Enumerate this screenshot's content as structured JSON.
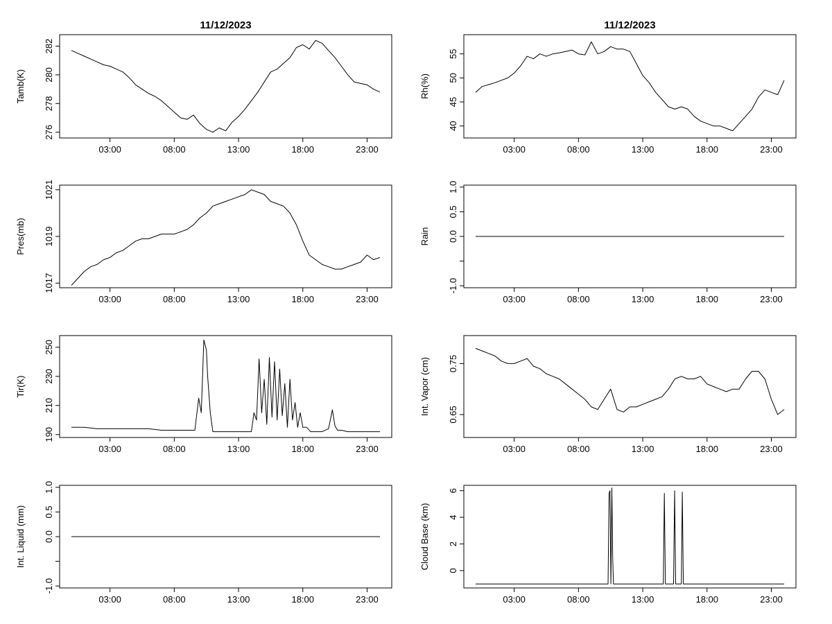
{
  "colors": {
    "line": "#000000",
    "background": "#ffffff"
  },
  "x_tick_labels": [
    "03:00",
    "08:00",
    "13:00",
    "18:00",
    "23:00"
  ],
  "chart_data": [
    {
      "type": "line",
      "title": "11/12/2023",
      "ylabel": "Tamb(K)",
      "xlim": [
        0,
        24
      ],
      "ylim": [
        275.6,
        282.8
      ],
      "x_ticks": [
        3,
        8,
        13,
        18,
        23
      ],
      "y_ticks": [
        276,
        278,
        280,
        282
      ],
      "y_tick_labels": [
        "276",
        "278",
        "280",
        "282"
      ],
      "x": [
        0,
        0.5,
        1,
        1.5,
        2,
        2.5,
        3,
        3.5,
        4,
        4.5,
        5,
        5.5,
        6,
        6.5,
        7,
        7.5,
        8,
        8.5,
        9,
        9.5,
        10,
        10.5,
        11,
        11.5,
        12,
        12.5,
        13,
        13.5,
        14,
        14.5,
        15,
        15.5,
        16,
        16.5,
        17,
        17.5,
        18,
        18.5,
        19,
        19.5,
        20,
        20.5,
        21,
        21.5,
        22,
        22.5,
        23,
        23.5,
        24
      ],
      "y": [
        281.7,
        281.5,
        281.3,
        281.1,
        280.9,
        280.7,
        280.6,
        280.4,
        280.2,
        279.8,
        279.3,
        279.0,
        278.7,
        278.5,
        278.2,
        277.8,
        277.4,
        277.0,
        276.9,
        277.2,
        276.6,
        276.2,
        276.0,
        276.3,
        276.1,
        276.7,
        277.1,
        277.6,
        278.2,
        278.8,
        279.5,
        280.2,
        280.4,
        280.8,
        281.2,
        281.9,
        282.1,
        281.8,
        282.4,
        282.2,
        281.7,
        281.2,
        280.6,
        280.0,
        279.5,
        279.4,
        279.3,
        279.0,
        278.8
      ]
    },
    {
      "type": "line",
      "title": "11/12/2023",
      "ylabel": "Rh(%)",
      "xlim": [
        0,
        24
      ],
      "ylim": [
        37.5,
        59
      ],
      "x_ticks": [
        3,
        8,
        13,
        18,
        23
      ],
      "y_ticks": [
        40,
        45,
        50,
        55
      ],
      "y_tick_labels": [
        "40",
        "45",
        "50",
        "55"
      ],
      "x": [
        0,
        0.5,
        1,
        1.5,
        2,
        2.5,
        3,
        3.5,
        4,
        4.5,
        5,
        5.5,
        6,
        6.5,
        7,
        7.5,
        8,
        8.5,
        9,
        9.5,
        10,
        10.5,
        11,
        11.5,
        12,
        12.5,
        13,
        13.5,
        14,
        14.5,
        15,
        15.5,
        16,
        16.5,
        17,
        17.5,
        18,
        18.5,
        19,
        19.5,
        20,
        20.5,
        21,
        21.5,
        22,
        22.5,
        23,
        23.5,
        24
      ],
      "y": [
        47.0,
        48.2,
        48.6,
        49.0,
        49.5,
        50.0,
        51.0,
        52.5,
        54.5,
        54.0,
        55.0,
        54.5,
        55.0,
        55.2,
        55.5,
        55.8,
        55.0,
        54.8,
        57.5,
        55.0,
        55.5,
        56.5,
        56.0,
        56.0,
        55.5,
        53.0,
        50.5,
        49.0,
        47.0,
        45.5,
        44.0,
        43.5,
        44.0,
        43.5,
        42.0,
        41.0,
        40.5,
        40.0,
        40.0,
        39.5,
        39.0,
        40.5,
        42.0,
        43.5,
        46.0,
        47.5,
        47.0,
        46.5,
        49.5
      ]
    },
    {
      "type": "line",
      "ylabel": "Pres(mb)",
      "xlim": [
        0,
        24
      ],
      "ylim": [
        1016.8,
        1021.2
      ],
      "x_ticks": [
        3,
        8,
        13,
        18,
        23
      ],
      "y_ticks": [
        1017,
        1019,
        1021
      ],
      "y_tick_labels": [
        "1017",
        "1019",
        "1021"
      ],
      "x": [
        0,
        0.5,
        1,
        1.5,
        2,
        2.5,
        3,
        3.5,
        4,
        4.5,
        5,
        5.5,
        6,
        6.5,
        7,
        7.5,
        8,
        8.5,
        9,
        9.5,
        10,
        10.5,
        11,
        11.5,
        12,
        12.5,
        13,
        13.5,
        14,
        14.5,
        15,
        15.5,
        16,
        16.5,
        17,
        17.5,
        18,
        18.5,
        19,
        19.5,
        20,
        20.5,
        21,
        21.5,
        22,
        22.5,
        23,
        23.5,
        24
      ],
      "y": [
        1016.9,
        1017.2,
        1017.5,
        1017.7,
        1017.8,
        1018.0,
        1018.1,
        1018.3,
        1018.4,
        1018.6,
        1018.8,
        1018.9,
        1018.9,
        1019.0,
        1019.1,
        1019.1,
        1019.1,
        1019.2,
        1019.3,
        1019.5,
        1019.8,
        1020.0,
        1020.3,
        1020.4,
        1020.5,
        1020.6,
        1020.7,
        1020.8,
        1021.0,
        1020.9,
        1020.8,
        1020.5,
        1020.4,
        1020.3,
        1020.0,
        1019.5,
        1018.8,
        1018.2,
        1018.0,
        1017.8,
        1017.7,
        1017.6,
        1017.6,
        1017.7,
        1017.8,
        1017.9,
        1018.2,
        1018.0,
        1018.1
      ]
    },
    {
      "type": "line",
      "ylabel": "Rain",
      "xlim": [
        0,
        24
      ],
      "ylim": [
        -1.04,
        1.04
      ],
      "x_ticks": [
        3,
        8,
        13,
        18,
        23
      ],
      "y_ticks": [
        -1.0,
        -0.5,
        0.0,
        0.5,
        1.0
      ],
      "y_tick_labels": [
        "-1.0",
        "",
        "0.0",
        "0.5",
        "1.0"
      ],
      "x": [
        0,
        24
      ],
      "y": [
        0,
        0
      ]
    },
    {
      "type": "line",
      "ylabel": "Tir(K)",
      "xlim": [
        0,
        24
      ],
      "ylim": [
        188,
        258
      ],
      "x_ticks": [
        3,
        8,
        13,
        18,
        23
      ],
      "y_ticks": [
        190,
        210,
        230,
        250
      ],
      "y_tick_labels": [
        "190",
        "210",
        "230",
        "250"
      ],
      "x": [
        0,
        1,
        2,
        3,
        4,
        5,
        6,
        7,
        8,
        9,
        9.6,
        9.9,
        10.1,
        10.3,
        10.5,
        10.6,
        10.8,
        11,
        11.2,
        11.5,
        12,
        12.5,
        13,
        13.5,
        14,
        14.2,
        14.4,
        14.6,
        14.8,
        15,
        15.2,
        15.4,
        15.6,
        15.8,
        16,
        16.2,
        16.4,
        16.6,
        16.8,
        17,
        17.2,
        17.4,
        17.6,
        17.8,
        18,
        18.3,
        18.6,
        19,
        19.5,
        20,
        20.3,
        20.5,
        20.7,
        21,
        21.5,
        22,
        22.5,
        23,
        24
      ],
      "y": [
        195,
        195,
        194,
        194,
        194,
        194,
        194,
        193,
        193,
        193,
        193,
        215,
        205,
        255,
        248,
        230,
        205,
        192,
        192,
        192,
        192,
        192,
        192,
        192,
        192,
        205,
        200,
        242,
        205,
        228,
        197,
        243,
        202,
        240,
        200,
        235,
        203,
        225,
        195,
        228,
        200,
        212,
        195,
        205,
        195,
        195,
        192,
        192,
        192,
        194,
        207,
        196,
        193,
        193,
        192,
        192,
        192,
        192,
        192
      ]
    },
    {
      "type": "line",
      "ylabel": "Int. Vapor (cm)",
      "xlim": [
        0,
        24
      ],
      "ylim": [
        0.605,
        0.805
      ],
      "x_ticks": [
        3,
        8,
        13,
        18,
        23
      ],
      "y_ticks": [
        0.65,
        0.75
      ],
      "y_tick_labels": [
        "0.65",
        "0.75"
      ],
      "x": [
        0,
        0.5,
        1,
        1.5,
        2,
        2.5,
        3,
        3.5,
        4,
        4.5,
        5,
        5.5,
        6,
        6.5,
        7,
        7.5,
        8,
        8.5,
        9,
        9.5,
        10,
        10.5,
        11,
        11.5,
        12,
        12.5,
        13,
        13.5,
        14,
        14.5,
        15,
        15.5,
        16,
        16.5,
        17,
        17.5,
        18,
        18.5,
        19,
        19.5,
        20,
        20.5,
        21,
        21.5,
        22,
        22.5,
        23,
        23.5,
        24
      ],
      "y": [
        0.78,
        0.775,
        0.77,
        0.765,
        0.755,
        0.75,
        0.75,
        0.755,
        0.76,
        0.745,
        0.74,
        0.73,
        0.725,
        0.72,
        0.71,
        0.7,
        0.69,
        0.68,
        0.665,
        0.66,
        0.68,
        0.7,
        0.66,
        0.655,
        0.665,
        0.665,
        0.67,
        0.675,
        0.68,
        0.685,
        0.7,
        0.72,
        0.725,
        0.72,
        0.72,
        0.725,
        0.71,
        0.705,
        0.7,
        0.695,
        0.7,
        0.7,
        0.72,
        0.735,
        0.735,
        0.72,
        0.68,
        0.65,
        0.66
      ]
    },
    {
      "type": "line",
      "ylabel": "Int. Liquid (mm)",
      "xlim": [
        0,
        24
      ],
      "ylim": [
        -1.04,
        1.04
      ],
      "x_ticks": [
        3,
        8,
        13,
        18,
        23
      ],
      "y_ticks": [
        -1.0,
        -0.5,
        0.0,
        0.5,
        1.0
      ],
      "y_tick_labels": [
        "-1.0",
        "",
        "0.0",
        "0.5",
        "1.0"
      ],
      "x": [
        0,
        24
      ],
      "y": [
        0,
        0
      ]
    },
    {
      "type": "line",
      "ylabel": "Cloud Base (km)",
      "xlim": [
        0,
        24
      ],
      "ylim": [
        -1.3,
        6.4
      ],
      "x_ticks": [
        3,
        8,
        13,
        18,
        23
      ],
      "y_ticks": [
        0,
        2,
        4,
        6
      ],
      "y_tick_labels": [
        "0",
        "2",
        "4",
        "6"
      ],
      "x": [
        0,
        10.3,
        10.38,
        10.45,
        10.52,
        10.6,
        10.66,
        10.72,
        10.8,
        14.6,
        14.68,
        14.76,
        15.4,
        15.48,
        15.56,
        16.0,
        16.08,
        16.16,
        24
      ],
      "y": [
        -1,
        -1,
        5.8,
        6.0,
        -1,
        6.2,
        1.0,
        -1,
        -1,
        -1,
        5.8,
        -1,
        -1,
        6.0,
        -1,
        -1,
        5.9,
        -1,
        -1
      ]
    }
  ]
}
